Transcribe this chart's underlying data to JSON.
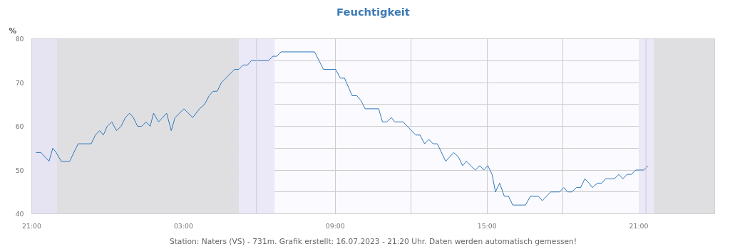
{
  "chart_data": {
    "type": "line",
    "title": "Feuchtigkeit",
    "ylabel": "%",
    "annotations": [
      "Station: Naters (VS) - 731m. Grafik erstellt: 16.07.2023 - 21:20 Uhr. Daten werden automatisch gemessen!"
    ],
    "xlim": [
      "2023-07-15T21:00",
      "2023-07-17T00:00"
    ],
    "ylim": [
      40,
      80
    ],
    "xticks": [
      {
        "value": "2023-07-15T21:00",
        "label": "21:00"
      },
      {
        "value": "2023-07-16T00:00",
        "label": null
      },
      {
        "value": "2023-07-16T03:00",
        "label": "03:00"
      },
      {
        "value": "2023-07-16T06:00",
        "label": null
      },
      {
        "value": "2023-07-16T09:00",
        "label": "09:00"
      },
      {
        "value": "2023-07-16T12:00",
        "label": null
      },
      {
        "value": "2023-07-16T15:00",
        "label": "15:00"
      },
      {
        "value": "2023-07-16T18:00",
        "label": null
      },
      {
        "value": "2023-07-16T21:00",
        "label": "21:00"
      },
      {
        "value": "2023-07-17T00:00",
        "label": null
      }
    ],
    "yticks": [
      40,
      {
        "value": 45,
        "label": null
      },
      50,
      {
        "value": 55,
        "label": null
      },
      60,
      {
        "value": 65,
        "label": null
      },
      70,
      {
        "value": 75,
        "label": null
      },
      80
    ],
    "grid": true,
    "marker": "none",
    "line_style": "solid",
    "bands": [
      {
        "axis": "x",
        "from": "2023-07-15T21:00",
        "to": "2023-07-15T22:00",
        "color": "#e6e3f2"
      },
      {
        "axis": "x",
        "from": "2023-07-15T22:00",
        "to": "2023-07-16T05:12",
        "color": "#dfdfe2"
      },
      {
        "axis": "x",
        "from": "2023-07-16T05:12",
        "to": "2023-07-16T06:36",
        "color": "#ebe8f8"
      },
      {
        "axis": "x",
        "from": "2023-07-16T21:00",
        "to": "2023-07-16T21:36",
        "color": "#ebe8f8"
      },
      {
        "axis": "x",
        "from": "2023-07-16T21:36",
        "to": "2023-07-17T00:00",
        "color": "#dfdfe2"
      }
    ],
    "ref_lines": [
      {
        "axis": "x",
        "value": "2023-07-16T05:53",
        "color": "#cccccc"
      },
      {
        "axis": "x",
        "value": "2023-07-16T21:17",
        "color": "#cccccc"
      }
    ],
    "series": [
      {
        "color": "#2f77b8",
        "x": [
          "2023-07-15T21:10",
          "2023-07-15T21:22",
          "2023-07-15T21:41",
          "2023-07-15T21:50",
          "2023-07-15T21:58",
          "2023-07-15T22:10",
          "2023-07-15T22:30",
          "2023-07-15T22:50",
          "2023-07-15T23:21",
          "2023-07-15T23:31",
          "2023-07-15T23:41",
          "2023-07-15T23:50",
          "2023-07-15T23:59",
          "2023-07-16T00:10",
          "2023-07-16T00:21",
          "2023-07-16T00:32",
          "2023-07-16T00:42",
          "2023-07-16T00:52",
          "2023-07-16T01:01",
          "2023-07-16T01:11",
          "2023-07-16T01:21",
          "2023-07-16T01:31",
          "2023-07-16T01:41",
          "2023-07-16T01:49",
          "2023-07-16T02:01",
          "2023-07-16T02:20",
          "2023-07-16T02:31",
          "2023-07-16T02:40",
          "2023-07-16T03:01",
          "2023-07-16T03:22",
          "2023-07-16T03:38",
          "2023-07-16T03:50",
          "2023-07-16T04:01",
          "2023-07-16T04:10",
          "2023-07-16T04:20",
          "2023-07-16T04:30",
          "2023-07-16T05:01",
          "2023-07-16T05:11",
          "2023-07-16T05:21",
          "2023-07-16T05:32",
          "2023-07-16T05:41",
          "2023-07-16T06:22",
          "2023-07-16T06:32",
          "2023-07-16T06:41",
          "2023-07-16T06:51",
          "2023-07-16T08:11",
          "2023-07-16T08:32",
          "2023-07-16T09:01",
          "2023-07-16T09:12",
          "2023-07-16T09:22",
          "2023-07-16T09:40",
          "2023-07-16T09:51",
          "2023-07-16T10:00",
          "2023-07-16T10:11",
          "2023-07-16T10:43",
          "2023-07-16T10:52",
          "2023-07-16T11:02",
          "2023-07-16T11:13",
          "2023-07-16T11:21",
          "2023-07-16T11:41",
          "2023-07-16T12:11",
          "2023-07-16T12:21",
          "2023-07-16T12:32",
          "2023-07-16T12:42",
          "2023-07-16T12:52",
          "2023-07-16T13:02",
          "2023-07-16T13:22",
          "2023-07-16T13:41",
          "2023-07-16T13:52",
          "2023-07-16T14:02",
          "2023-07-16T14:11",
          "2023-07-16T14:32",
          "2023-07-16T14:43",
          "2023-07-16T14:52",
          "2023-07-16T15:02",
          "2023-07-16T15:12",
          "2023-07-16T15:20",
          "2023-07-16T15:30",
          "2023-07-16T15:41",
          "2023-07-16T15:51",
          "2023-07-16T16:01",
          "2023-07-16T16:31",
          "2023-07-16T16:43",
          "2023-07-16T17:02",
          "2023-07-16T17:11",
          "2023-07-16T17:31",
          "2023-07-16T17:52",
          "2023-07-16T18:02",
          "2023-07-16T18:11",
          "2023-07-16T18:21",
          "2023-07-16T18:32",
          "2023-07-16T18:42",
          "2023-07-16T18:52",
          "2023-07-16T19:02",
          "2023-07-16T19:10",
          "2023-07-16T19:22",
          "2023-07-16T19:32",
          "2023-07-16T19:41",
          "2023-07-16T20:02",
          "2023-07-16T20:13",
          "2023-07-16T20:22",
          "2023-07-16T20:32",
          "2023-07-16T20:42",
          "2023-07-16T20:53",
          "2023-07-16T21:12",
          "2023-07-16T21:22"
        ],
        "values": [
          54,
          54,
          52,
          55,
          54,
          52,
          52,
          56,
          56,
          58,
          59,
          58,
          60,
          61,
          59,
          60,
          62,
          63,
          62,
          60,
          60,
          61,
          60,
          63,
          61,
          63,
          59,
          62,
          64,
          62,
          64,
          65,
          67,
          68,
          68,
          70,
          73,
          73,
          74,
          74,
          75,
          75,
          76,
          76,
          77,
          77,
          73,
          73,
          71,
          71,
          67,
          67,
          66,
          64,
          64,
          61,
          61,
          62,
          61,
          61,
          58,
          58,
          56,
          57,
          56,
          56,
          52,
          54,
          53,
          51,
          52,
          50,
          51,
          50,
          51,
          49,
          45,
          47,
          44,
          44,
          42,
          42,
          44,
          44,
          43,
          45,
          45,
          46,
          45,
          45,
          46,
          46,
          48,
          47,
          46,
          47,
          47,
          48,
          48,
          49,
          48,
          49,
          49,
          50,
          50,
          51
        ]
      }
    ]
  }
}
